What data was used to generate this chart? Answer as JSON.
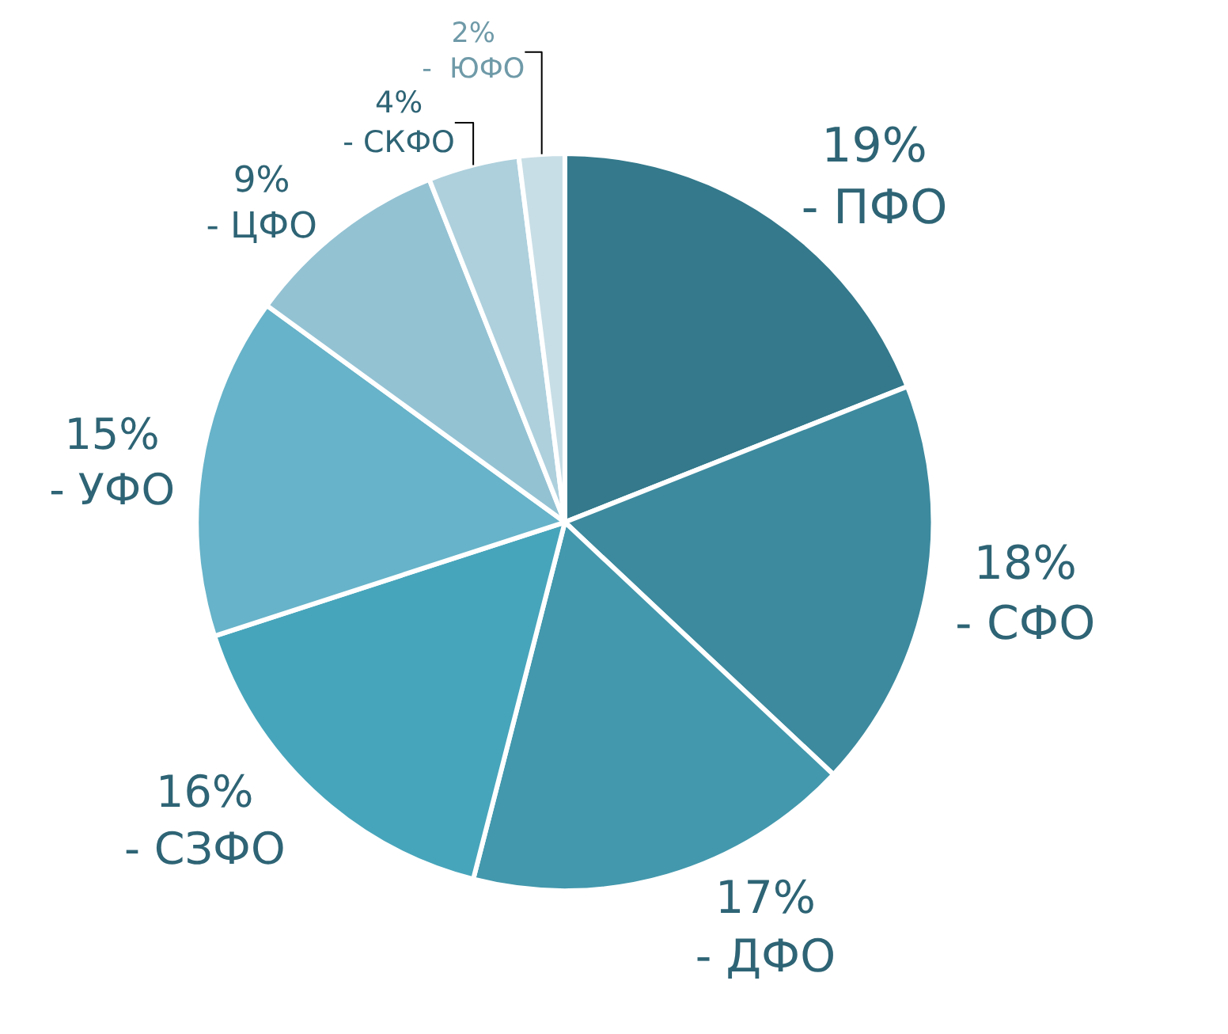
{
  "chart_data": {
    "type": "pie",
    "categories": [
      "- ПФО",
      "- СФО",
      "- ДФО",
      "- СЗФО",
      "- УФО",
      "- ЦФО",
      "- СКФО",
      "-  ЮФО"
    ],
    "values": [
      19,
      18,
      17,
      16,
      15,
      9,
      4,
      2
    ],
    "value_labels": [
      "19%",
      "18%",
      "17%",
      "16%",
      "15%",
      "9%",
      "4%",
      "2%"
    ],
    "colors": [
      "#34798c",
      "#3d8a9e",
      "#4398ad",
      "#47a5bb",
      "#67b3c9",
      "#93c2d3",
      "#aed0dd",
      "#c8dee6"
    ]
  }
}
